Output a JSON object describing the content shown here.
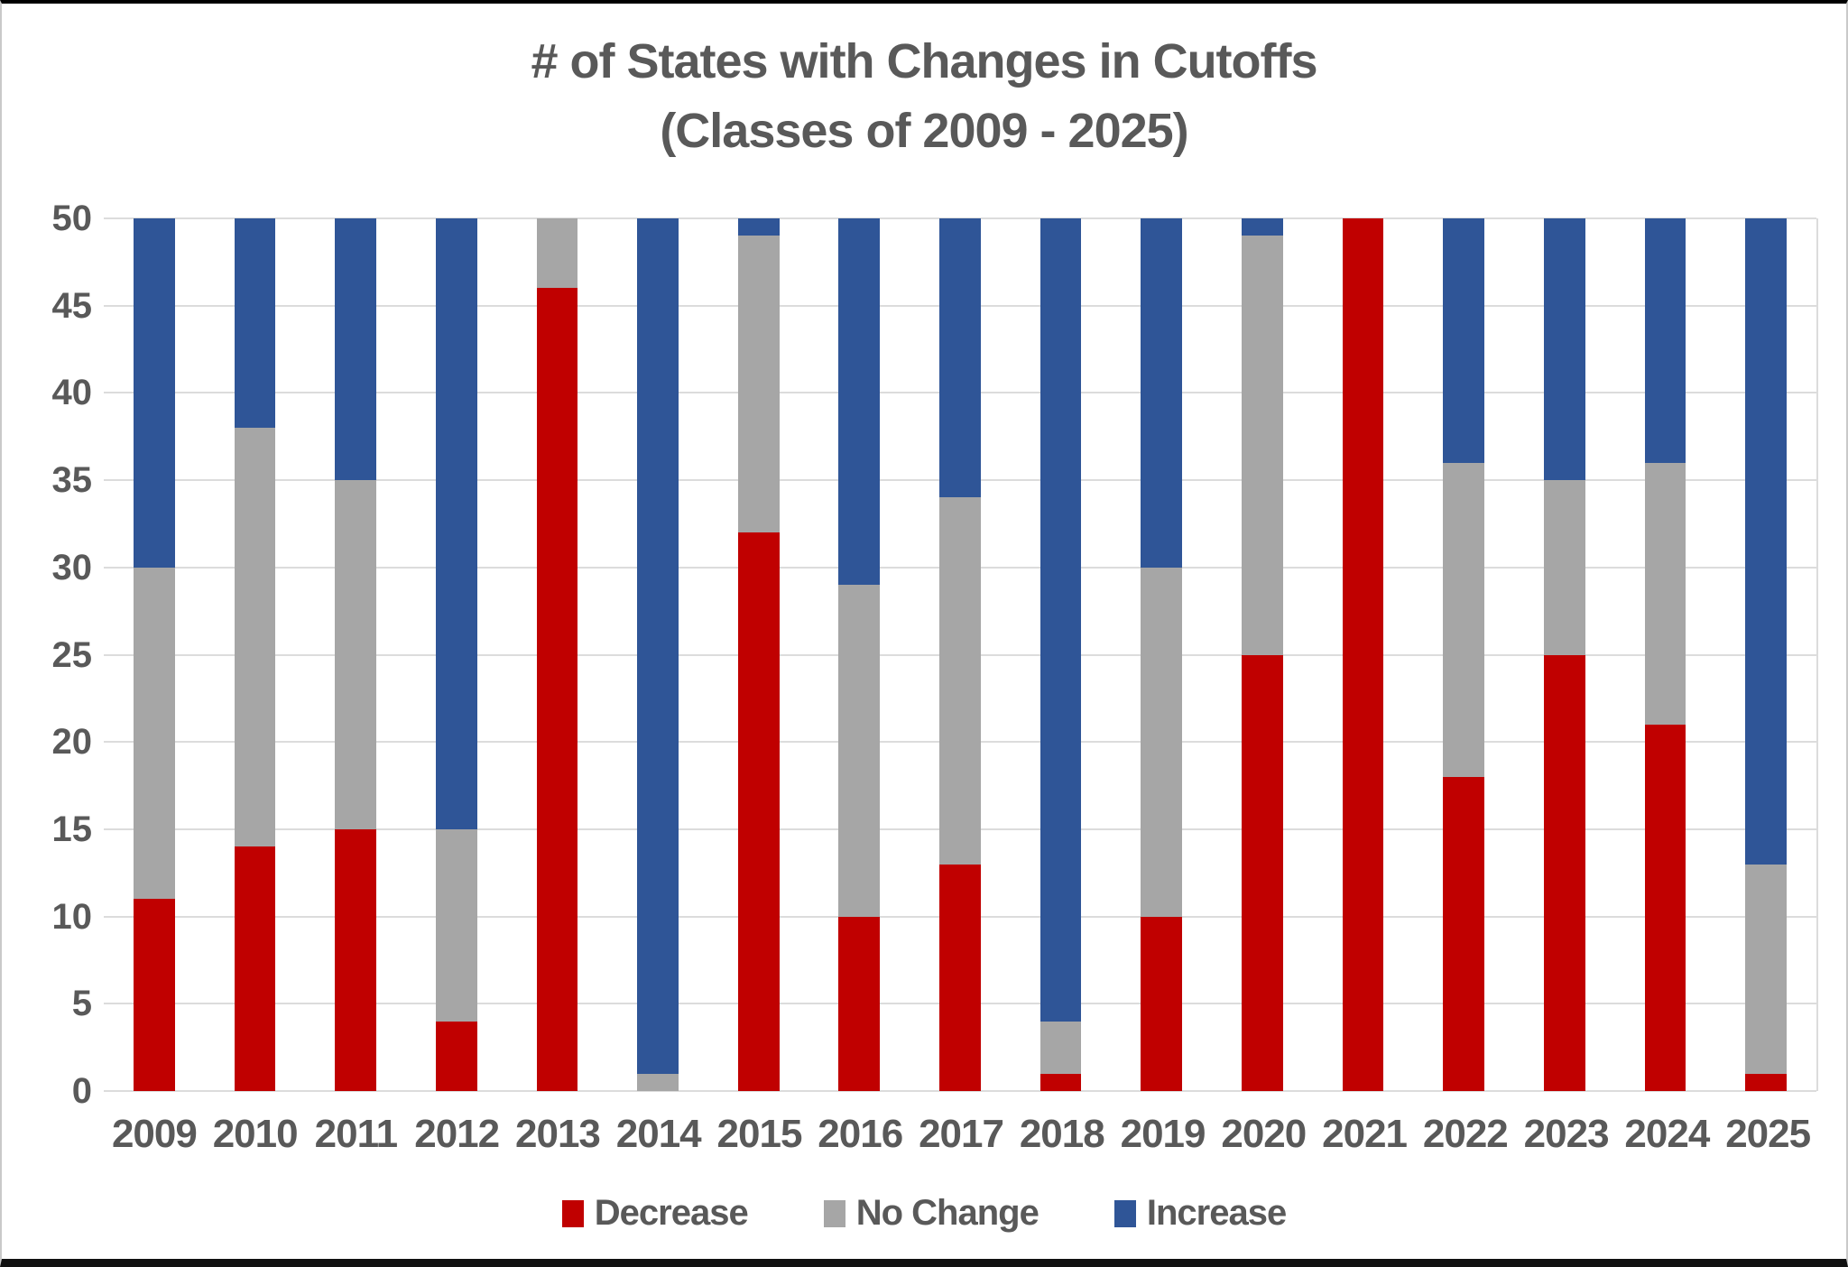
{
  "chart_data": {
    "type": "bar",
    "stacked": true,
    "title_line1": "# of States with Changes in Cutoffs",
    "title_line2": "(Classes of 2009 - 2025)",
    "categories": [
      "2009",
      "2010",
      "2011",
      "2012",
      "2013",
      "2014",
      "2015",
      "2016",
      "2017",
      "2018",
      "2019",
      "2020",
      "2021",
      "2022",
      "2023",
      "2024",
      "2025"
    ],
    "series": [
      {
        "name": "Decrease",
        "color": "#C00000",
        "values": [
          11,
          14,
          15,
          4,
          46,
          0,
          32,
          10,
          13,
          1,
          10,
          25,
          50,
          18,
          25,
          21,
          1
        ]
      },
      {
        "name": "No Change",
        "color": "#A6A6A6",
        "values": [
          19,
          24,
          20,
          11,
          4,
          1,
          17,
          19,
          21,
          3,
          20,
          24,
          0,
          18,
          10,
          15,
          12
        ]
      },
      {
        "name": "Increase",
        "color": "#2F5597",
        "values": [
          20,
          12,
          15,
          35,
          0,
          49,
          1,
          21,
          16,
          46,
          20,
          1,
          0,
          14,
          15,
          14,
          37
        ]
      }
    ],
    "ylim": [
      0,
      50
    ],
    "yticks": [
      0,
      5,
      10,
      15,
      20,
      25,
      30,
      35,
      40,
      45,
      50
    ],
    "xlabel": "",
    "ylabel": "",
    "grid": "horizontal",
    "legend_position": "bottom",
    "gridline_color": "#DCDCDC",
    "text_color": "#595959",
    "background_color": "#FFFFFF"
  }
}
